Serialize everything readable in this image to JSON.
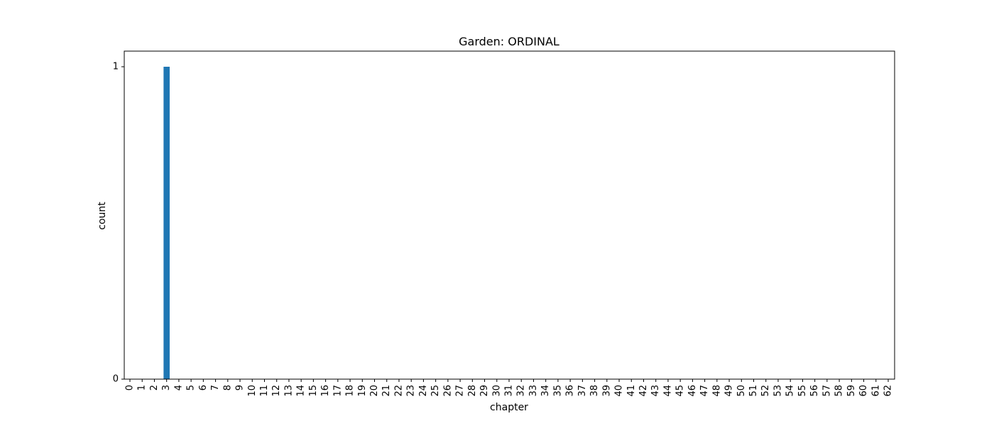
{
  "chart_data": {
    "type": "bar",
    "title": "Garden: ORDINAL",
    "xlabel": "chapter",
    "ylabel": "count",
    "categories": [
      "0",
      "1",
      "2",
      "3",
      "4",
      "5",
      "6",
      "7",
      "8",
      "9",
      "10",
      "11",
      "12",
      "13",
      "14",
      "15",
      "16",
      "17",
      "18",
      "19",
      "20",
      "21",
      "22",
      "23",
      "24",
      "25",
      "26",
      "27",
      "28",
      "29",
      "30",
      "31",
      "32",
      "33",
      "34",
      "35",
      "36",
      "37",
      "38",
      "39",
      "40",
      "41",
      "42",
      "43",
      "44",
      "45",
      "46",
      "47",
      "48",
      "49",
      "50",
      "51",
      "52",
      "53",
      "54",
      "55",
      "56",
      "57",
      "58",
      "59",
      "60",
      "61",
      "62"
    ],
    "values": [
      0,
      0,
      0,
      1,
      0,
      0,
      0,
      0,
      0,
      0,
      0,
      0,
      0,
      0,
      0,
      0,
      0,
      0,
      0,
      0,
      0,
      0,
      0,
      0,
      0,
      0,
      0,
      0,
      0,
      0,
      0,
      0,
      0,
      0,
      0,
      0,
      0,
      0,
      0,
      0,
      0,
      0,
      0,
      0,
      0,
      0,
      0,
      0,
      0,
      0,
      0,
      0,
      0,
      0,
      0,
      0,
      0,
      0,
      0,
      0,
      0,
      0,
      0
    ],
    "ylim": [
      0,
      1
    ],
    "yticks": [
      "0",
      "1"
    ],
    "grid": false,
    "bar_color": "#1f77b4"
  }
}
